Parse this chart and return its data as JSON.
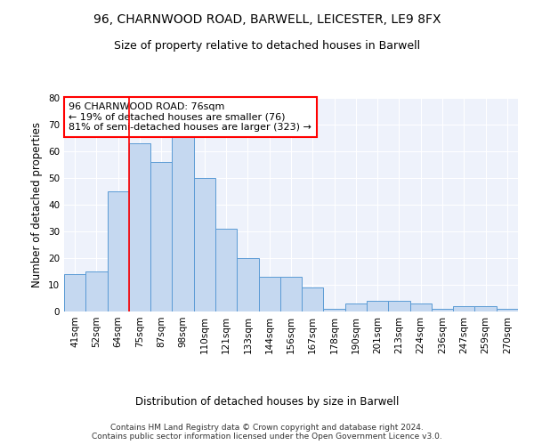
{
  "title_line1": "96, CHARNWOOD ROAD, BARWELL, LEICESTER, LE9 8FX",
  "title_line2": "Size of property relative to detached houses in Barwell",
  "xlabel": "Distribution of detached houses by size in Barwell",
  "ylabel": "Number of detached properties",
  "categories": [
    "41sqm",
    "52sqm",
    "64sqm",
    "75sqm",
    "87sqm",
    "98sqm",
    "110sqm",
    "121sqm",
    "133sqm",
    "144sqm",
    "156sqm",
    "167sqm",
    "178sqm",
    "190sqm",
    "201sqm",
    "213sqm",
    "224sqm",
    "236sqm",
    "247sqm",
    "259sqm",
    "270sqm"
  ],
  "values": [
    14,
    15,
    45,
    63,
    56,
    67,
    50,
    31,
    20,
    13,
    13,
    9,
    1,
    3,
    4,
    4,
    3,
    1,
    2,
    2,
    1
  ],
  "bar_color": "#c5d8f0",
  "bar_edge_color": "#5b9bd5",
  "ylim": [
    0,
    80
  ],
  "yticks": [
    0,
    10,
    20,
    30,
    40,
    50,
    60,
    70,
    80
  ],
  "red_line_bin_index": 3,
  "annotation_line1": "96 CHARNWOOD ROAD: 76sqm",
  "annotation_line2": "← 19% of detached houses are smaller (76)",
  "annotation_line3": "81% of semi-detached houses are larger (323) →",
  "annotation_box_color": "white",
  "annotation_border_color": "red",
  "footer_line1": "Contains HM Land Registry data © Crown copyright and database right 2024.",
  "footer_line2": "Contains public sector information licensed under the Open Government Licence v3.0.",
  "background_color": "#eef2fb",
  "grid_color": "white",
  "title_fontsize": 10,
  "subtitle_fontsize": 9,
  "axis_label_fontsize": 8.5,
  "tick_fontsize": 7.5,
  "annotation_fontsize": 8,
  "footer_fontsize": 6.5
}
